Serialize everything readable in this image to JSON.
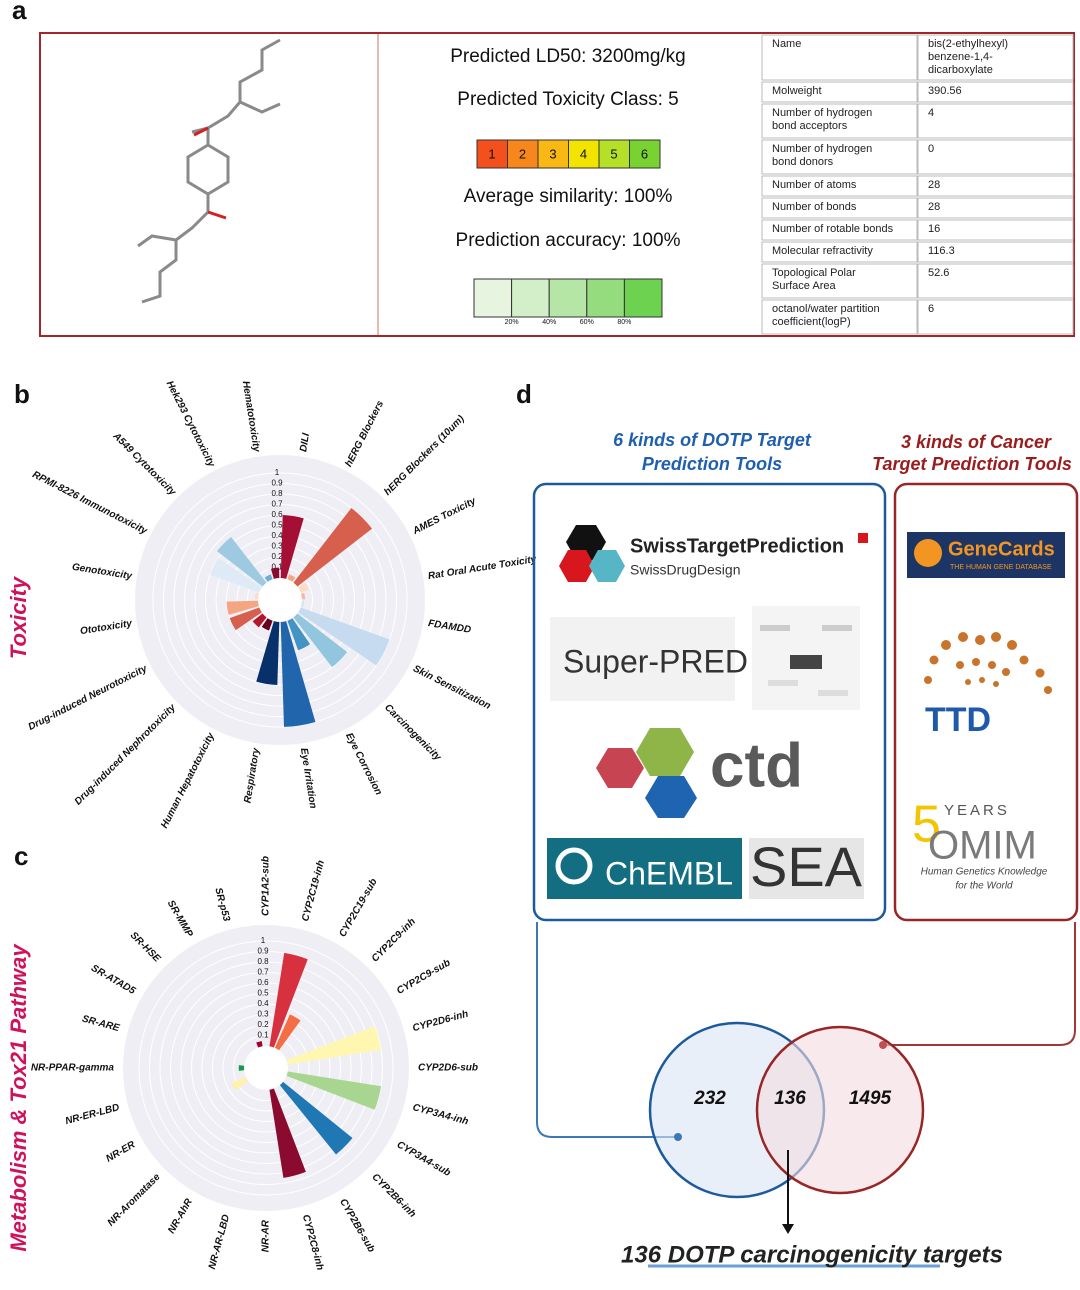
{
  "panel_labels": [
    "a",
    "b",
    "c",
    "d"
  ],
  "panel_a": {
    "ld50": "Predicted LD50: 3200mg/kg",
    "toxicity_class": "Predicted Toxicity Class: 5",
    "class_scale": {
      "labels": [
        "1",
        "2",
        "3",
        "4",
        "5",
        "6"
      ],
      "colors": [
        "#f4501e",
        "#f7861c",
        "#f9b814",
        "#f2e400",
        "#b4e02a",
        "#78d232"
      ]
    },
    "similarity": "Average similarity: 100%",
    "accuracy": "Prediction accuracy: 100%",
    "similarity_scale": {
      "colors": [
        "#e6f4e0",
        "#d3efc9",
        "#b6e6a5",
        "#95dc7e",
        "#6dd24f"
      ],
      "labels": [
        "20%",
        "40%",
        "60%",
        "80%"
      ]
    },
    "table": {
      "rows": [
        [
          [
            "Name"
          ],
          [
            "bis(2-ethylhexyl)",
            "benzene-1,4-",
            "dicarboxylate"
          ]
        ],
        [
          [
            "Molweight"
          ],
          [
            "390.56"
          ]
        ],
        [
          [
            "Number of hydrogen",
            "bond acceptors"
          ],
          [
            "4"
          ]
        ],
        [
          [
            "Number of hydrogen",
            "bond donors"
          ],
          [
            "0"
          ]
        ],
        [
          [
            "Number of atoms"
          ],
          [
            "28"
          ]
        ],
        [
          [
            "Number of bonds"
          ],
          [
            "28"
          ]
        ],
        [
          [
            "Number of rotable bonds"
          ],
          [
            "16"
          ]
        ],
        [
          [
            "Molecular refractivity"
          ],
          [
            "116.3"
          ]
        ],
        [
          [
            "Topological Polar",
            "Surface Area"
          ],
          [
            "52.6"
          ]
        ],
        [
          [
            "octanol/water partition",
            "coefficient(logP)"
          ],
          [
            "6"
          ]
        ]
      ]
    }
  },
  "chart_data": [
    {
      "type": "radial_bar",
      "axis_title": "Toxicity",
      "categories": [
        "Hematotoxicity",
        "DILI",
        "hERG Blockers",
        "hERG Blockers (10um)",
        "AMES Toxicity",
        "Rat Oral Acute Toxicity",
        "FDAMDD",
        "Skin Sensitization",
        "Carcinogenicity",
        "Eye Corrosion",
        "Eye Irritation",
        "Respiratory",
        "Human Hepatotoxicity",
        "Drug-induced Nephrotoxicity",
        "Drug-induced Neurotoxicity",
        "Ototoxicity",
        "Genotoxicity",
        "RPMI-8226 Immunotoxicity",
        "A549 Cytotoxicity",
        "Hek293 Cytotoxicity"
      ],
      "values": [
        0.1,
        0.6,
        0.05,
        0.9,
        0.08,
        0.03,
        0.02,
        0.9,
        0.6,
        0.3,
        1,
        0.6,
        0.1,
        0.12,
        0.3,
        0.3,
        0.03,
        0.5,
        0.55,
        0.05
      ],
      "colors": [
        "#8b0a2e",
        "#a50f35",
        "#f4a582",
        "#d6604d",
        "#fddbc7",
        "#fbb4a0",
        "#d1e5f0",
        "#c6dbef",
        "#92c5de",
        "#4393c3",
        "#2166ac",
        "#08306b",
        "#67001f",
        "#b2182b",
        "#d6604d",
        "#f4a582",
        "#fddbc7",
        "#deebf7",
        "#9ecae1",
        "#6baed6"
      ],
      "ylim": [
        0,
        1
      ],
      "yticks": [
        0.1,
        0.2,
        0.3,
        0.4,
        0.5,
        0.6,
        0.7,
        0.8,
        0.9,
        1
      ]
    },
    {
      "type": "radial_bar",
      "axis_title": "Metabolism & Tox21 Pathway",
      "categories": [
        "CYP1A2-sub",
        "CYP2C19-inh",
        "CYP2C19-sub",
        "CYP2C9-inh",
        "CYP2C9-sub",
        "CYP2D6-inh",
        "CYP2D6-sub",
        "CYP3A4-inh",
        "CYP3A4-sub",
        "CYP2B6-inh",
        "CYP2B6-sub",
        "CYP2C8-inh",
        "NR-AR",
        "NR-AR-LBD",
        "NR-AhR",
        "NR-Aromatase",
        "NR-ER",
        "NR-ER-LBD",
        "NR-PPAR-gamma",
        "SR-ARE",
        "SR-ATAD5",
        "SR-HSE",
        "SR-MMP",
        "SR-p53"
      ],
      "values": [
        0,
        0.9,
        0.35,
        0,
        0,
        0.9,
        0,
        0.9,
        0,
        0.85,
        0,
        0.85,
        0,
        0,
        0,
        0,
        0.15,
        0,
        0.05,
        0,
        0,
        0,
        0,
        0.05
      ],
      "colors": [
        "#d73027",
        "#d7303f",
        "#f46d43",
        "#fdae61",
        "#fee08b",
        "#fff7b0",
        "#d9ef8b",
        "#a8d58f",
        "#66bd63",
        "#1f78b4",
        "#2166ac",
        "#8b0a30",
        "#a50026",
        "#d73027",
        "#f46d43",
        "#fdae61",
        "#fff2a8",
        "#d9ef8b",
        "#1a9850",
        "#66bd63",
        "#4393c3",
        "#2166ac",
        "#8b0a30",
        "#a50026"
      ],
      "ylim": [
        0,
        1
      ],
      "yticks": [
        0.1,
        0.2,
        0.3,
        0.4,
        0.5,
        0.6,
        0.7,
        0.8,
        0.9,
        1
      ]
    }
  ],
  "panel_d": {
    "heading_left": [
      "6 kinds of  DOTP Target",
      "Prediction Tools"
    ],
    "heading_right": [
      "3 kinds of  Cancer",
      "Target Prediction Tools"
    ],
    "tools_left": {
      "swiss": "SwissTargetPrediction",
      "swiss_sub": "SwissDrugDesign",
      "superpred": "Super-PRED",
      "ctd": "ctd",
      "chembl": "ChEMBL",
      "sea": "SEA"
    },
    "tools_right": {
      "genecards": "GeneCards",
      "genecards_sub": "THE HUMAN GENE DATABASE",
      "ttd": "TTD",
      "omim_5": "5",
      "omim_years": "YEARS",
      "omim": "OMIM",
      "omim_sub": [
        "Human Genetics Knowledge",
        "for the World"
      ]
    },
    "venn": {
      "left": 232,
      "overlap": 136,
      "right": 1495
    },
    "caption": "136 DOTP carcinogenicity targets"
  }
}
